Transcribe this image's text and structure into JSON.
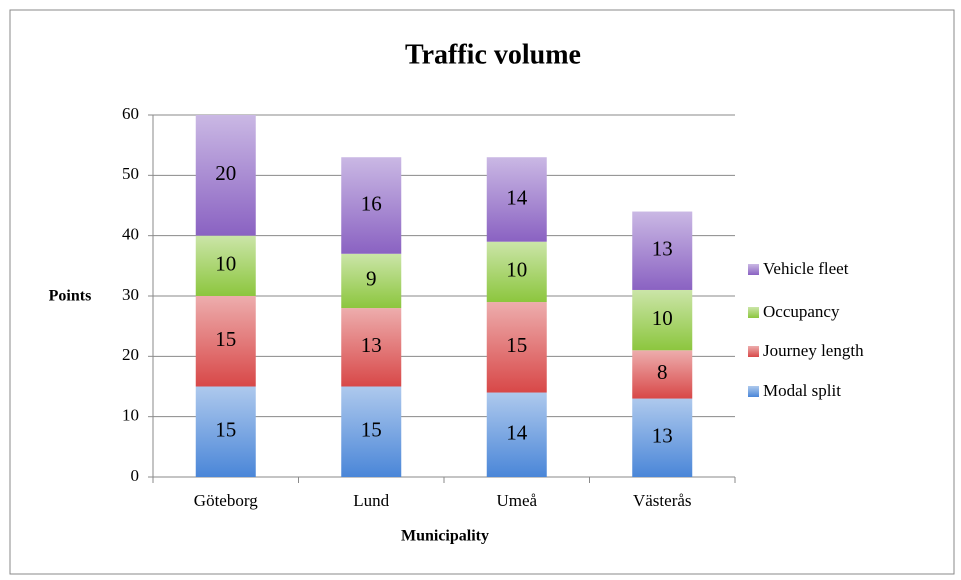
{
  "chart_data": {
    "type": "stacked_bar",
    "title": "Traffic volume",
    "x_label": "Municipality",
    "y_label": "Points",
    "categories": [
      "Göteborg",
      "Lund",
      "Umeå",
      "Västerås"
    ],
    "series": [
      {
        "name": "Modal split",
        "color": "#4a86d8",
        "values": [
          15,
          15,
          14,
          13
        ]
      },
      {
        "name": "Journey length",
        "color": "#d84848",
        "values": [
          15,
          13,
          15,
          8
        ]
      },
      {
        "name": "Occupancy",
        "color": "#8cc63e",
        "values": [
          10,
          9,
          10,
          10
        ]
      },
      {
        "name": "Vehicle fleet",
        "color": "#8a62c2",
        "values": [
          20,
          16,
          14,
          13
        ]
      }
    ],
    "ylim": [
      0,
      60
    ],
    "yticks": [
      0,
      10,
      20,
      30,
      40,
      50,
      60
    ],
    "grid": true,
    "legend": "right"
  }
}
